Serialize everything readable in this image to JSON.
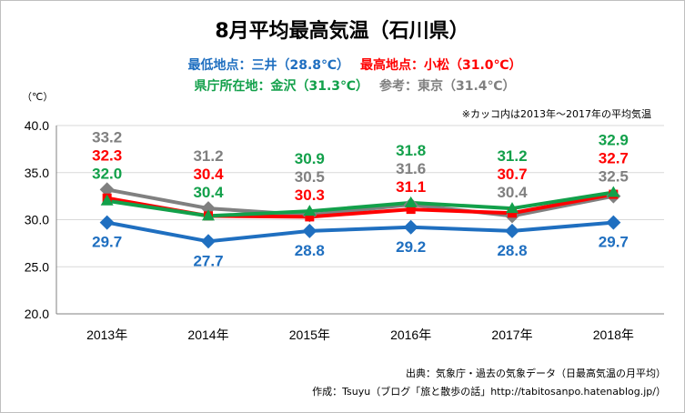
{
  "chart_data": {
    "type": "line",
    "title": "8月平均最高気温（石川県）",
    "subtitle_lines": [
      [
        {
          "text": "最低地点：三井（28.8℃）",
          "color": "#1f6fc0"
        },
        {
          "text": "最高地点：小松（31.0℃）",
          "color": "#ff0000"
        }
      ],
      [
        {
          "text": "県庁所在地：金沢（31.3℃）",
          "color": "#12a04a"
        },
        {
          "text": "参考：東京（31.4℃）",
          "color": "#808080"
        }
      ]
    ],
    "note": "※カッコ内は2013年～2017年の平均気温",
    "ylabel": "（℃）",
    "ylim": [
      20,
      40
    ],
    "yticks": [
      "20.0",
      "25.0",
      "30.0",
      "35.0",
      "40.0"
    ],
    "categories": [
      "2013年",
      "2014年",
      "2015年",
      "2016年",
      "2017年",
      "2018年"
    ],
    "grid": true,
    "series": [
      {
        "name": "東京",
        "color": "#808080",
        "marker": "diamond",
        "values": [
          33.2,
          31.2,
          30.5,
          31.6,
          30.4,
          32.5
        ]
      },
      {
        "name": "小松",
        "color": "#ff0000",
        "marker": "square",
        "values": [
          32.3,
          30.4,
          30.3,
          31.1,
          30.7,
          32.7
        ]
      },
      {
        "name": "金沢",
        "color": "#12a04a",
        "marker": "triangle",
        "values": [
          32.0,
          30.4,
          30.9,
          31.8,
          31.2,
          32.9
        ]
      },
      {
        "name": "三井",
        "color": "#1f6fc0",
        "marker": "diamond",
        "values": [
          29.7,
          27.7,
          28.8,
          29.2,
          28.8,
          29.7
        ]
      }
    ],
    "source_lines": [
      "出典：気象庁・過去の気象データ（日最高気温の月平均）",
      "作成：Tsuyu（ブログ「旅と散歩の話」http://tabitosanpo.hatenablog.jp/）"
    ]
  }
}
